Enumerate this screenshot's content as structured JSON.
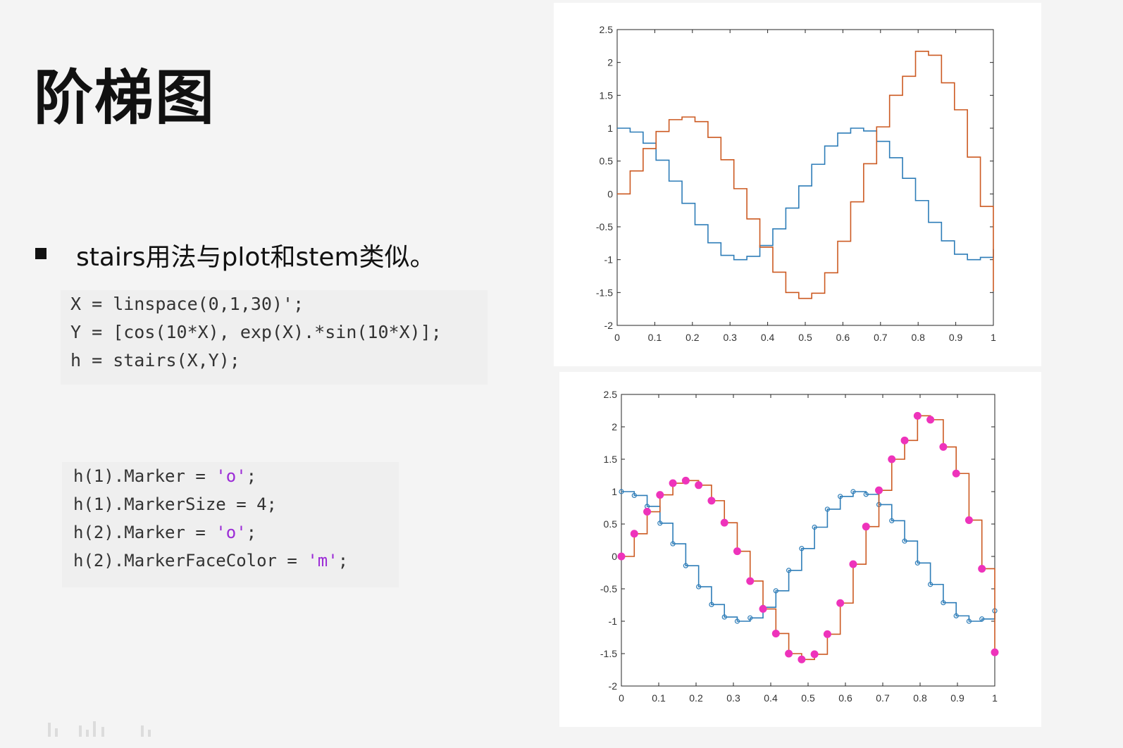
{
  "slide": {
    "title": "阶梯图",
    "bullet": "stairs用法与plot和stem类似。"
  },
  "code_block_1": {
    "lines": [
      {
        "code": "X = linspace(0,1,30)';"
      },
      {
        "code": "Y = [cos(10*X), exp(X).*sin(10*X)];"
      },
      {
        "code": "h = stairs(X,Y);"
      }
    ]
  },
  "code_block_2": {
    "lines": [
      {
        "pre": "h(1).Marker = ",
        "str": "'o'",
        "post": ";"
      },
      {
        "pre": "h(1).MarkerSize = 4;",
        "str": "",
        "post": ""
      },
      {
        "pre": "h(2).Marker = ",
        "str": "'o'",
        "post": ";"
      },
      {
        "pre": "h(2).MarkerFaceColor = ",
        "str": "'m'",
        "post": ";"
      }
    ]
  },
  "colors": {
    "series1": "#2e7db8",
    "series2": "#cc5a22",
    "marker_face": "#ee33bb",
    "string_literal": "#9b2bd6"
  },
  "chart_data": [
    {
      "type": "line",
      "style": "stairs",
      "x": [
        0,
        0.0345,
        0.069,
        0.1034,
        0.1379,
        0.1724,
        0.2069,
        0.2414,
        0.2759,
        0.3103,
        0.3448,
        0.3793,
        0.4138,
        0.4483,
        0.4828,
        0.5172,
        0.5517,
        0.5862,
        0.6207,
        0.6552,
        0.6897,
        0.7241,
        0.7586,
        0.7931,
        0.8276,
        0.8621,
        0.8966,
        0.931,
        0.9655,
        1
      ],
      "series": [
        {
          "values": [
            1,
            0.941,
            0.772,
            0.513,
            0.195,
            -0.143,
            -0.468,
            -0.743,
            -0.935,
            -1,
            -0.949,
            -0.785,
            -0.531,
            -0.215,
            0.122,
            0.451,
            0.729,
            0.926,
            1,
            0.958,
            0.8,
            0.551,
            0.237,
            -0.101,
            -0.432,
            -0.714,
            -0.917,
            -1,
            -0.965,
            -0.839
          ],
          "color": "#2e7db8",
          "marker": "none"
        },
        {
          "values": [
            0,
            0.35,
            0.69,
            0.95,
            1.13,
            1.17,
            1.1,
            0.86,
            0.52,
            0.08,
            -0.38,
            -0.81,
            -1.19,
            -1.5,
            -1.59,
            -1.51,
            -1.2,
            -0.72,
            -0.12,
            0.46,
            1.02,
            1.5,
            1.79,
            2.17,
            2.11,
            1.69,
            1.28,
            0.56,
            -0.19,
            -1.48
          ],
          "color": "#cc5a22",
          "marker": "none"
        }
      ],
      "xlim": [
        0,
        1
      ],
      "ylim": [
        -2,
        2.5
      ],
      "xticks": [
        "0",
        "0.1",
        "0.2",
        "0.3",
        "0.4",
        "0.5",
        "0.6",
        "0.7",
        "0.8",
        "0.9",
        "1"
      ],
      "yticks": [
        "2.5",
        "2",
        "1.5",
        "1",
        "0.5",
        "0",
        "-0.5",
        "-1",
        "-1.5",
        "-2"
      ]
    },
    {
      "type": "line",
      "style": "stairs",
      "x": [
        0,
        0.0345,
        0.069,
        0.1034,
        0.1379,
        0.1724,
        0.2069,
        0.2414,
        0.2759,
        0.3103,
        0.3448,
        0.3793,
        0.4138,
        0.4483,
        0.4828,
        0.5172,
        0.5517,
        0.5862,
        0.6207,
        0.6552,
        0.6897,
        0.7241,
        0.7586,
        0.7931,
        0.8276,
        0.8621,
        0.8966,
        0.931,
        0.9655,
        1
      ],
      "series": [
        {
          "values": [
            1,
            0.941,
            0.772,
            0.513,
            0.195,
            -0.143,
            -0.468,
            -0.743,
            -0.935,
            -1,
            -0.949,
            -0.785,
            -0.531,
            -0.215,
            0.122,
            0.451,
            0.729,
            0.926,
            1,
            0.958,
            0.8,
            0.551,
            0.237,
            -0.101,
            -0.432,
            -0.714,
            -0.917,
            -1,
            -0.965,
            -0.839
          ],
          "color": "#2e7db8",
          "marker": "circle-open"
        },
        {
          "values": [
            0,
            0.35,
            0.69,
            0.95,
            1.13,
            1.17,
            1.1,
            0.86,
            0.52,
            0.08,
            -0.38,
            -0.81,
            -1.19,
            -1.5,
            -1.59,
            -1.51,
            -1.2,
            -0.72,
            -0.12,
            0.46,
            1.02,
            1.5,
            1.79,
            2.17,
            2.11,
            1.69,
            1.28,
            0.56,
            -0.19,
            -1.48
          ],
          "color": "#cc5a22",
          "marker": "circle-filled-magenta"
        }
      ],
      "xlim": [
        0,
        1
      ],
      "ylim": [
        -2,
        2.5
      ],
      "xticks": [
        "0",
        "0.1",
        "0.2",
        "0.3",
        "0.4",
        "0.5",
        "0.6",
        "0.7",
        "0.8",
        "0.9",
        "1"
      ],
      "yticks": [
        "2.5",
        "2",
        "1.5",
        "1",
        "0.5",
        "0",
        "-0.5",
        "-1",
        "-1.5",
        "-2"
      ]
    }
  ]
}
